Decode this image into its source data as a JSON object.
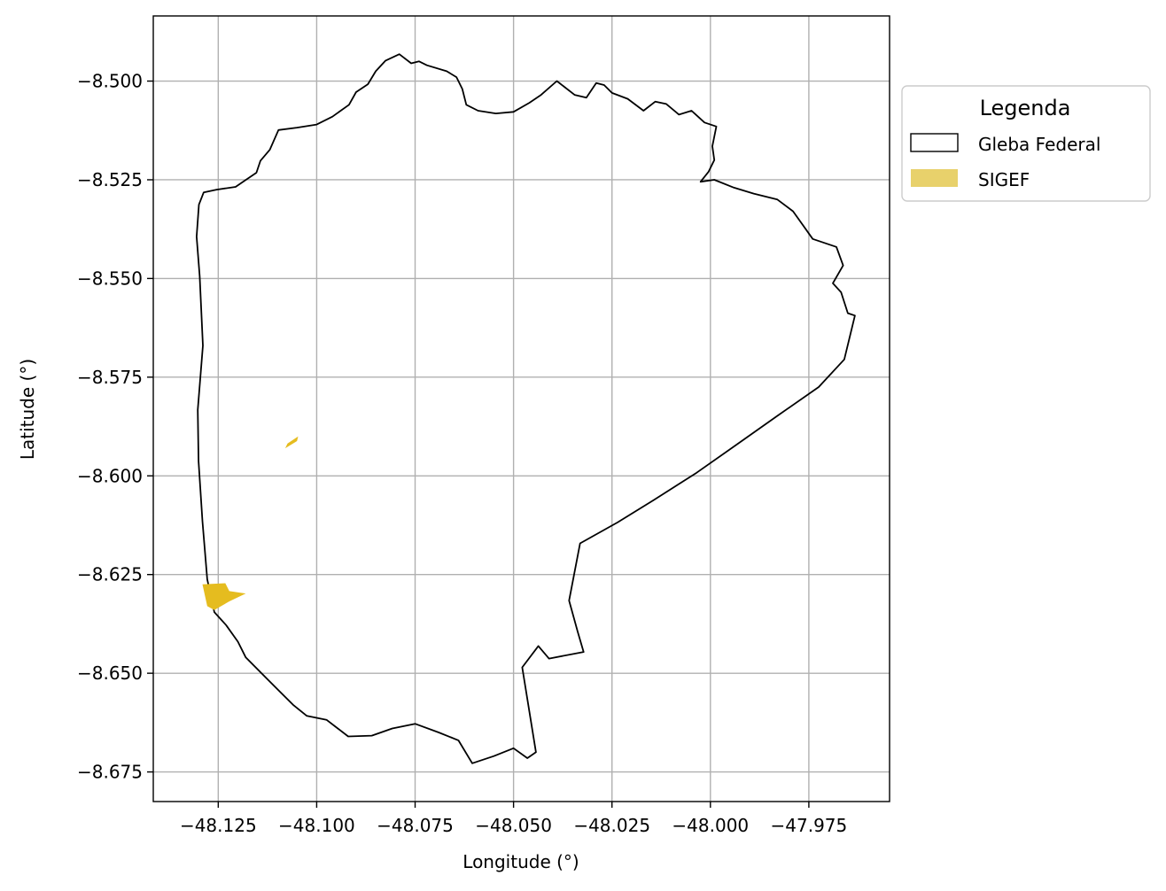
{
  "chart_data": {
    "type": "map",
    "xlabel": "Longitude (°)",
    "ylabel": "Latitude (°)",
    "xlim": [
      -48.1415,
      -47.9545
    ],
    "ylim": [
      -8.6825,
      -8.4835
    ],
    "xticks": [
      -48.125,
      -48.1,
      -48.075,
      -48.05,
      -48.025,
      -48.0,
      -47.975
    ],
    "xtick_labels": [
      "−48.125",
      "−48.100",
      "−48.075",
      "−48.050",
      "−48.025",
      "−48.000",
      "−47.975"
    ],
    "yticks": [
      -8.5,
      -8.525,
      -8.55,
      -8.575,
      -8.6,
      -8.625,
      -8.65,
      -8.675
    ],
    "ytick_labels": [
      "−8.500",
      "−8.525",
      "−8.550",
      "−8.575",
      "−8.600",
      "−8.625",
      "−8.650",
      "−8.675"
    ],
    "grid": true,
    "legend": {
      "title": "Legenda",
      "placement": "outside-upper-right",
      "entries": [
        {
          "label": "Gleba Federal",
          "style": "outline",
          "edge_color": "#000000",
          "fill_color": "#ffffff"
        },
        {
          "label": "SIGEF",
          "style": "fill",
          "fill_color": "#e8d16b"
        }
      ]
    },
    "layers": [
      {
        "name": "Gleba Federal",
        "edge_color": "#000000",
        "fill_color": "none",
        "polygons": [
          [
            [
              -48.1097,
              -8.5124
            ],
            [
              -48.1119,
              -8.5174
            ],
            [
              -48.1143,
              -8.5202
            ],
            [
              -48.1153,
              -8.5232
            ],
            [
              -48.1187,
              -8.5255
            ],
            [
              -48.1206,
              -8.5268
            ],
            [
              -48.1254,
              -8.5275
            ],
            [
              -48.1287,
              -8.5282
            ],
            [
              -48.1299,
              -8.5313
            ],
            [
              -48.1305,
              -8.5394
            ],
            [
              -48.1297,
              -8.5495
            ],
            [
              -48.1289,
              -8.567
            ],
            [
              -48.1302,
              -8.5833
            ],
            [
              -48.13,
              -8.5963
            ],
            [
              -48.129,
              -8.6115
            ],
            [
              -48.1278,
              -8.6262
            ],
            [
              -48.126,
              -8.6345
            ],
            [
              -48.123,
              -8.6378
            ],
            [
              -48.12,
              -8.642
            ],
            [
              -48.118,
              -8.646
            ],
            [
              -48.113,
              -8.651
            ],
            [
              -48.1095,
              -8.6545
            ],
            [
              -48.106,
              -8.658
            ],
            [
              -48.1025,
              -8.6608
            ],
            [
              -48.0975,
              -8.6618
            ],
            [
              -48.092,
              -8.666
            ],
            [
              -48.086,
              -8.6658
            ],
            [
              -48.0808,
              -8.664
            ],
            [
              -48.075,
              -8.6628
            ],
            [
              -48.069,
              -8.665
            ],
            [
              -48.064,
              -8.667
            ],
            [
              -48.0605,
              -8.6728
            ],
            [
              -48.055,
              -8.671
            ],
            [
              -48.05,
              -8.669
            ],
            [
              -48.0465,
              -8.6715
            ],
            [
              -48.0443,
              -8.67
            ],
            [
              -48.0478,
              -8.6485
            ],
            [
              -48.0437,
              -8.6431
            ],
            [
              -48.041,
              -8.6463
            ],
            [
              -48.0322,
              -8.6446
            ],
            [
              -48.0337,
              -8.6395
            ],
            [
              -48.0359,
              -8.6316
            ],
            [
              -48.0331,
              -8.6171
            ],
            [
              -48.0236,
              -8.6118
            ],
            [
              -48.0145,
              -8.6062
            ],
            [
              -48.0035,
              -8.5992
            ],
            [
              -47.9925,
              -8.5915
            ],
            [
              -47.983,
              -8.5848
            ],
            [
              -47.9725,
              -8.5775
            ],
            [
              -47.966,
              -8.5705
            ],
            [
              -47.9633,
              -8.5594
            ],
            [
              -47.9651,
              -8.5588
            ],
            [
              -47.9668,
              -8.5535
            ],
            [
              -47.9689,
              -8.5512
            ],
            [
              -47.9663,
              -8.5467
            ],
            [
              -47.968,
              -8.542
            ],
            [
              -47.974,
              -8.54
            ],
            [
              -47.979,
              -8.533
            ],
            [
              -47.983,
              -8.53
            ],
            [
              -47.989,
              -8.5285
            ],
            [
              -47.994,
              -8.527
            ],
            [
              -47.999,
              -8.525
            ],
            [
              -48.0025,
              -8.5255
            ],
            [
              -48.0005,
              -8.523
            ],
            [
              -47.999,
              -8.52
            ],
            [
              -47.9995,
              -8.5165
            ],
            [
              -47.9985,
              -8.5115
            ],
            [
              -48.0015,
              -8.5105
            ],
            [
              -48.0048,
              -8.5075
            ],
            [
              -48.008,
              -8.5085
            ],
            [
              -48.0112,
              -8.5058
            ],
            [
              -48.014,
              -8.5052
            ],
            [
              -48.017,
              -8.5075
            ],
            [
              -48.021,
              -8.5045
            ],
            [
              -48.025,
              -8.503
            ],
            [
              -48.027,
              -8.501
            ],
            [
              -48.029,
              -8.5005
            ],
            [
              -48.0315,
              -8.5042
            ],
            [
              -48.0345,
              -8.5035
            ],
            [
              -48.039,
              -8.5
            ],
            [
              -48.043,
              -8.5035
            ],
            [
              -48.046,
              -8.5055
            ],
            [
              -48.05,
              -8.5078
            ],
            [
              -48.0545,
              -8.5082
            ],
            [
              -48.059,
              -8.5075
            ],
            [
              -48.062,
              -8.506
            ],
            [
              -48.063,
              -8.502
            ],
            [
              -48.0645,
              -8.499
            ],
            [
              -48.067,
              -8.4975
            ],
            [
              -48.072,
              -8.496
            ],
            [
              -48.074,
              -8.495
            ],
            [
              -48.076,
              -8.4955
            ],
            [
              -48.079,
              -8.4932
            ],
            [
              -48.0825,
              -8.4948
            ],
            [
              -48.085,
              -8.4975
            ],
            [
              -48.087,
              -8.5008
            ],
            [
              -48.09,
              -8.5028
            ],
            [
              -48.0918,
              -8.506
            ],
            [
              -48.096,
              -8.509
            ],
            [
              -48.1,
              -8.511
            ],
            [
              -48.105,
              -8.5118
            ],
            [
              -48.1097,
              -8.5124
            ]
          ]
        ]
      },
      {
        "name": "SIGEF",
        "edge_color": "none",
        "fill_color": "#e5bc1f",
        "polygons": [
          [
            [
              -48.129,
              -8.6275
            ],
            [
              -48.1232,
              -8.6272
            ],
            [
              -48.1222,
              -8.6292
            ],
            [
              -48.118,
              -8.6298
            ],
            [
              -48.1222,
              -8.6318
            ],
            [
              -48.126,
              -8.634
            ],
            [
              -48.1278,
              -8.633
            ]
          ],
          [
            [
              -48.108,
              -8.593
            ],
            [
              -48.105,
              -8.5912
            ],
            [
              -48.1047,
              -8.59
            ],
            [
              -48.1074,
              -8.5918
            ]
          ]
        ]
      }
    ]
  }
}
